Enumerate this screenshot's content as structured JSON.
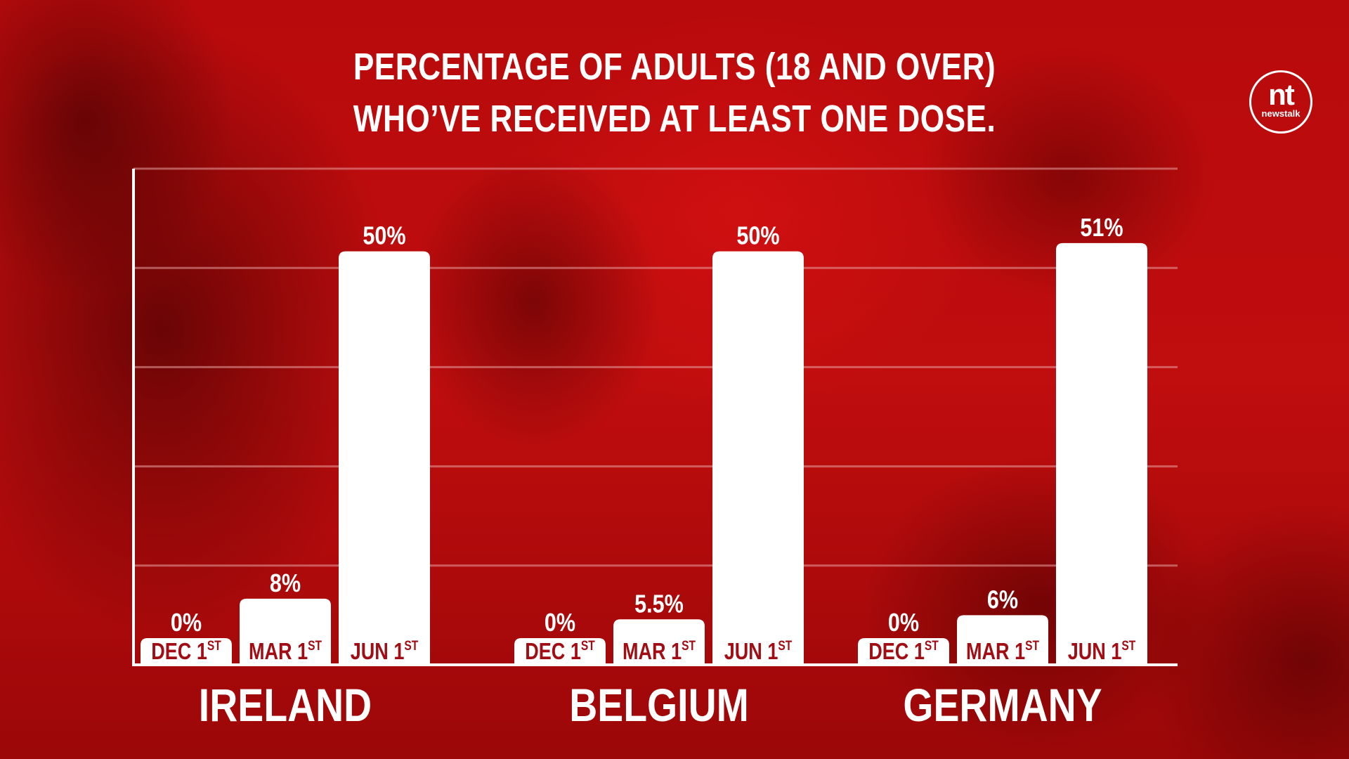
{
  "title": {
    "line1": "PERCENTAGE OF ADULTS (18 AND OVER)",
    "line2": "WHO’VE RECEIVED AT LEAST ONE DOSE."
  },
  "logo": {
    "mark": "nt",
    "wordmark": "newstalk"
  },
  "colors": {
    "background": "#c00a0c",
    "bar": "#ffffff",
    "bar_label": "#a10d14",
    "text": "#ffffff",
    "gridline": "#e8a0a0"
  },
  "chart_data": {
    "type": "bar",
    "title": "PERCENTAGE OF ADULTS (18 AND OVER) WHO’VE RECEIVED AT LEAST ONE DOSE.",
    "xlabel": "",
    "ylabel": "",
    "ylim": [
      0,
      60
    ],
    "grid": true,
    "legend": "none",
    "groups": [
      {
        "name": "IRELAND",
        "bars": [
          {
            "label": "DEC 1",
            "sup": "ST",
            "value": 0,
            "value_label": "0%"
          },
          {
            "label": "MAR 1",
            "sup": "ST",
            "value": 8,
            "value_label": "8%"
          },
          {
            "label": "JUN 1",
            "sup": "ST",
            "value": 50,
            "value_label": "50%"
          }
        ]
      },
      {
        "name": "BELGIUM",
        "bars": [
          {
            "label": "DEC 1",
            "sup": "ST",
            "value": 0,
            "value_label": "0%"
          },
          {
            "label": "MAR 1",
            "sup": "ST",
            "value": 5.5,
            "value_label": "5.5%"
          },
          {
            "label": "JUN 1",
            "sup": "ST",
            "value": 50,
            "value_label": "50%"
          }
        ]
      },
      {
        "name": "GERMANY",
        "bars": [
          {
            "label": "DEC 1",
            "sup": "ST",
            "value": 0,
            "value_label": "0%"
          },
          {
            "label": "MAR 1",
            "sup": "ST",
            "value": 6,
            "value_label": "6%"
          },
          {
            "label": "JUN 1",
            "sup": "ST",
            "value": 51,
            "value_label": "51%"
          }
        ]
      }
    ]
  }
}
